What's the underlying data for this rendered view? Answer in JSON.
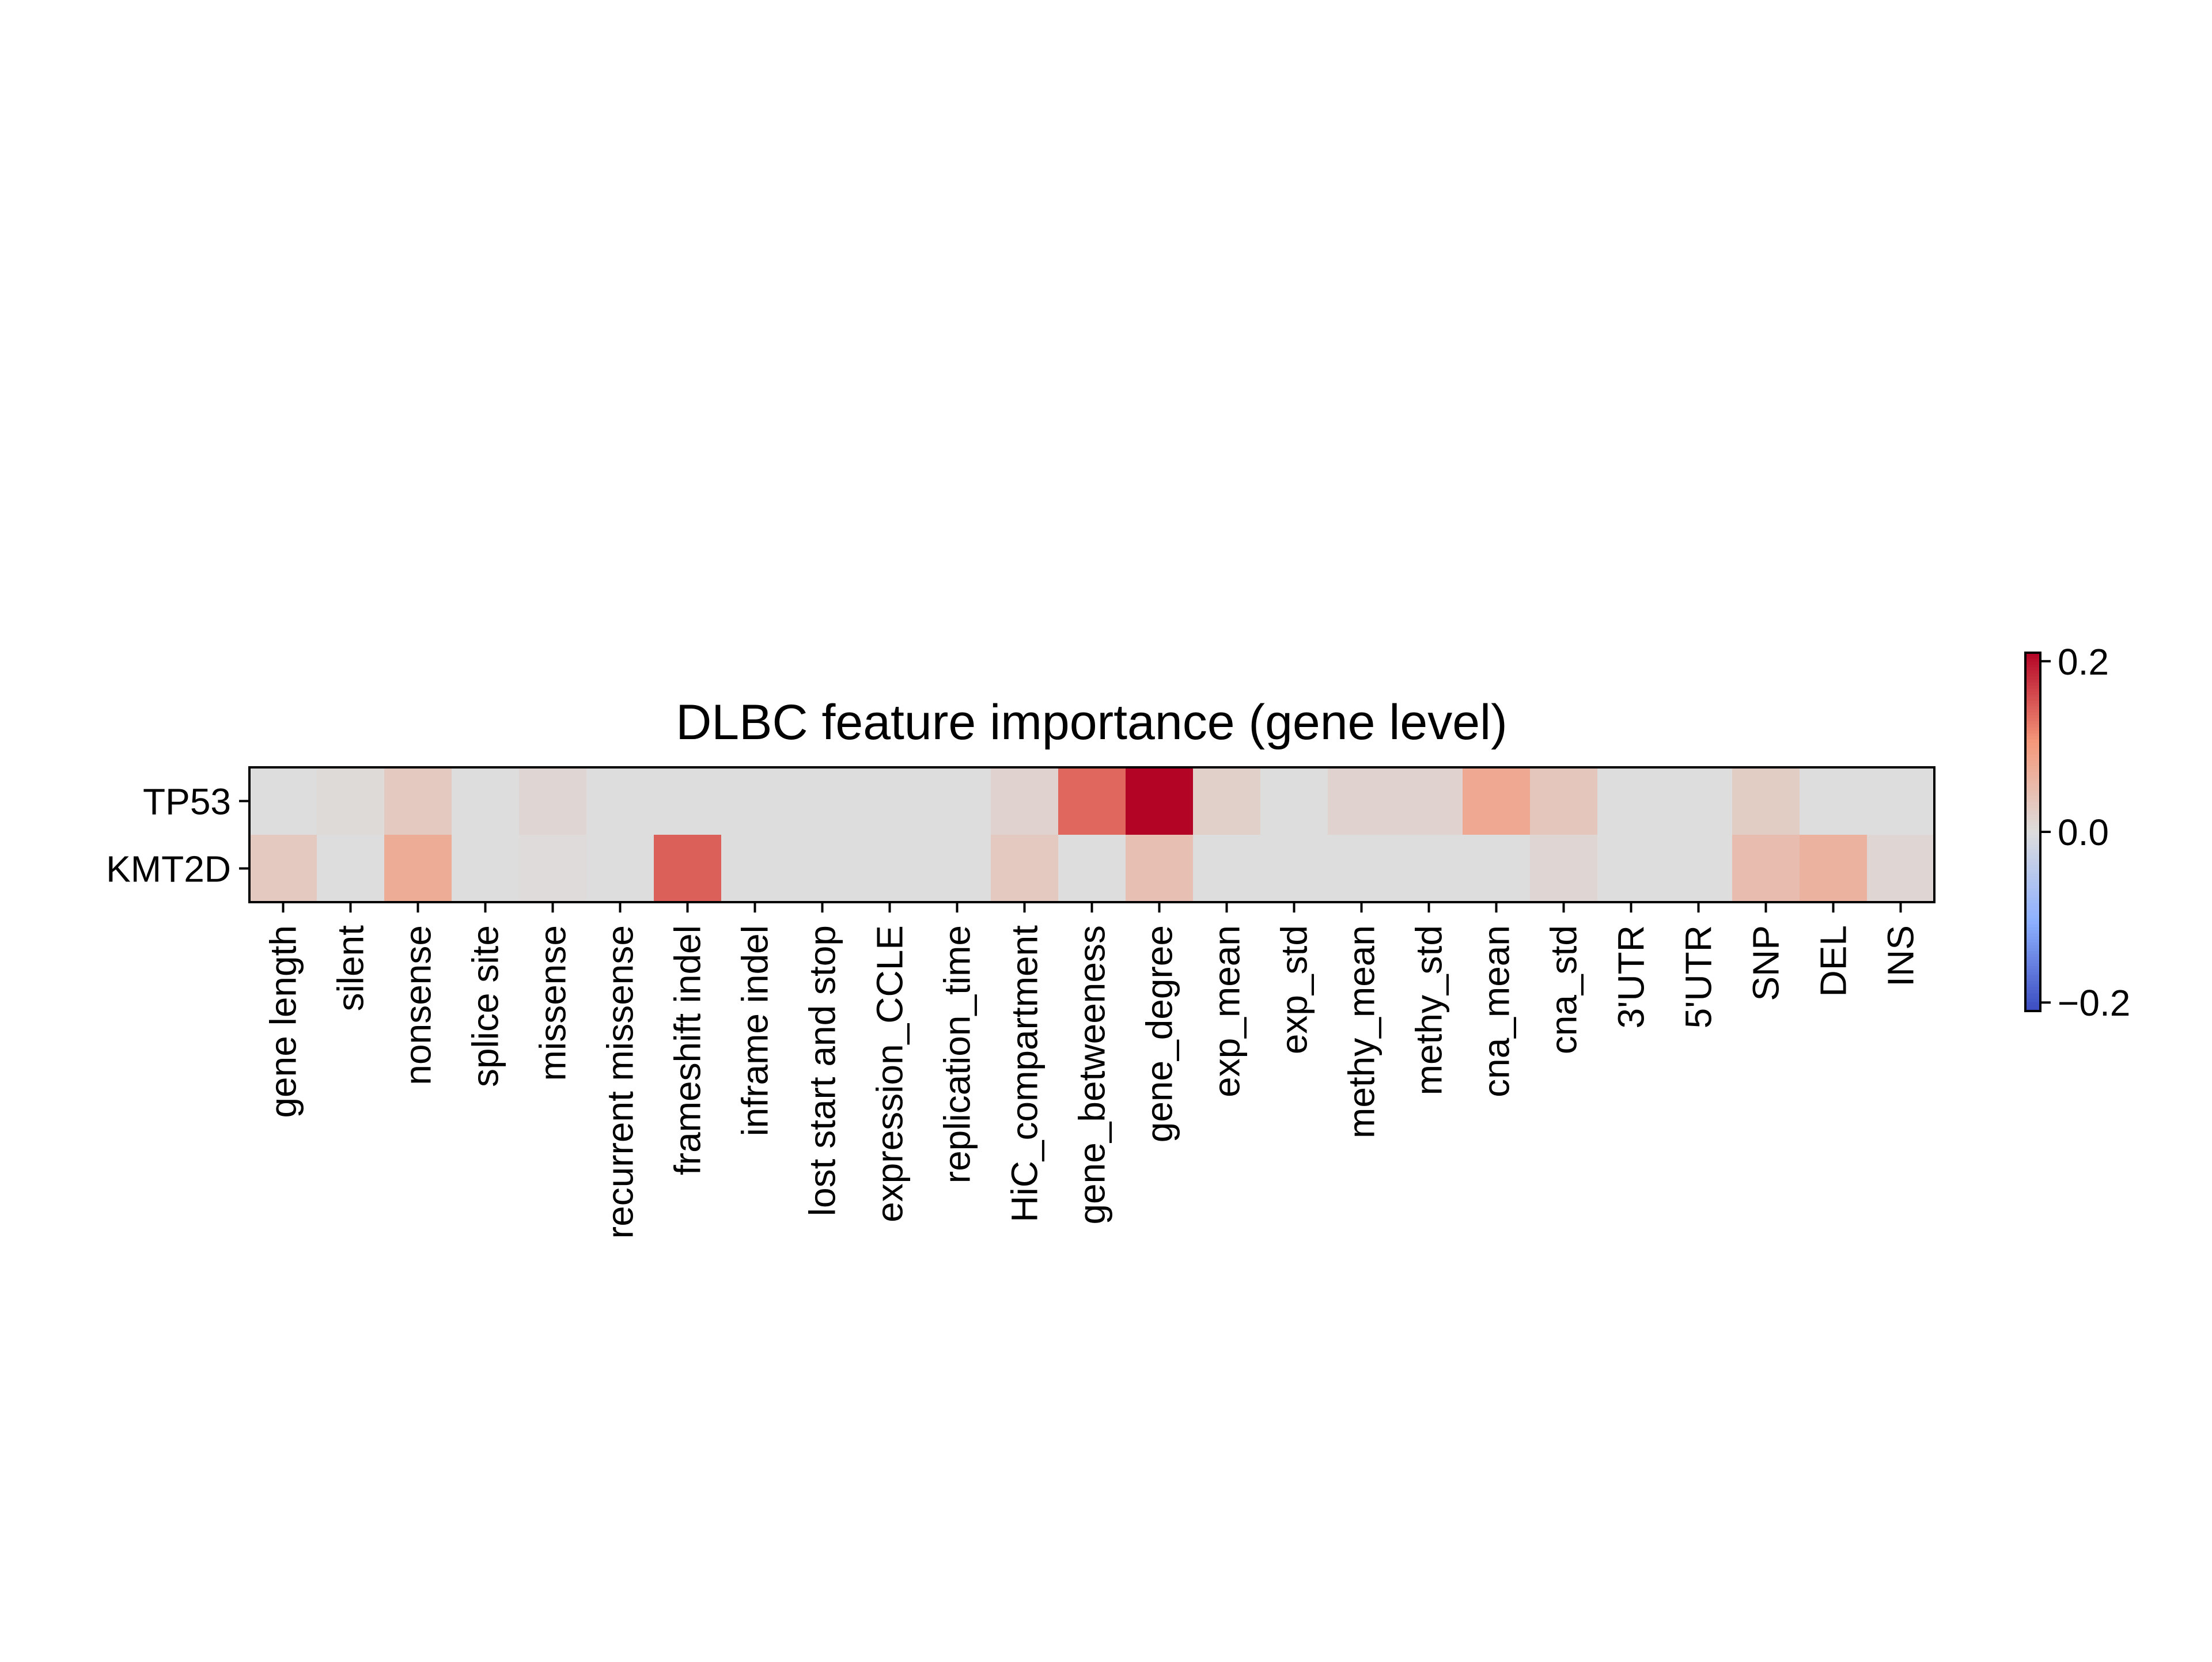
{
  "chart_data": {
    "type": "heatmap",
    "title": "DLBC feature importance (gene level)",
    "xlabel": "",
    "ylabel": "",
    "rows": [
      "TP53",
      "KMT2D"
    ],
    "columns": [
      "gene length",
      "silent",
      "nonsense",
      "splice site",
      "missense",
      "recurrent missense",
      "frameshift indel",
      "inframe indel",
      "lost start and stop",
      "expression_CCLE",
      "replication_time",
      "HiC_compartment",
      "gene_betweeness",
      "gene_degree",
      "exp_mean",
      "exp_std",
      "methy_mean",
      "methy_std",
      "cna_mean",
      "cna_std",
      "3'UTR",
      "5'UTR",
      "SNP",
      "DEL",
      "INS"
    ],
    "values": [
      [
        0.0,
        0.005,
        0.03,
        0.0,
        0.01,
        0.0,
        0.0,
        0.0,
        0.0,
        0.0,
        0.0,
        0.015,
        0.14,
        0.21,
        0.02,
        0.0,
        0.015,
        0.015,
        0.08,
        0.035,
        0.0,
        0.0,
        0.025,
        0.0,
        0.0
      ],
      [
        0.03,
        0.0,
        0.075,
        0.0,
        0.003,
        0.0,
        0.145,
        0.0,
        0.0,
        0.0,
        0.0,
        0.03,
        0.0,
        0.045,
        0.0,
        0.0,
        0.0,
        0.0,
        0.0,
        0.01,
        0.0,
        0.0,
        0.05,
        0.065,
        0.01
      ]
    ],
    "colormap": "coolwarm",
    "colorbar": {
      "vmin": -0.21,
      "vmax": 0.21,
      "ticks": [
        0.2,
        0.0,
        -0.2
      ],
      "tick_labels": [
        "0.2",
        "0.0",
        "−0.2"
      ]
    },
    "grid": false
  }
}
